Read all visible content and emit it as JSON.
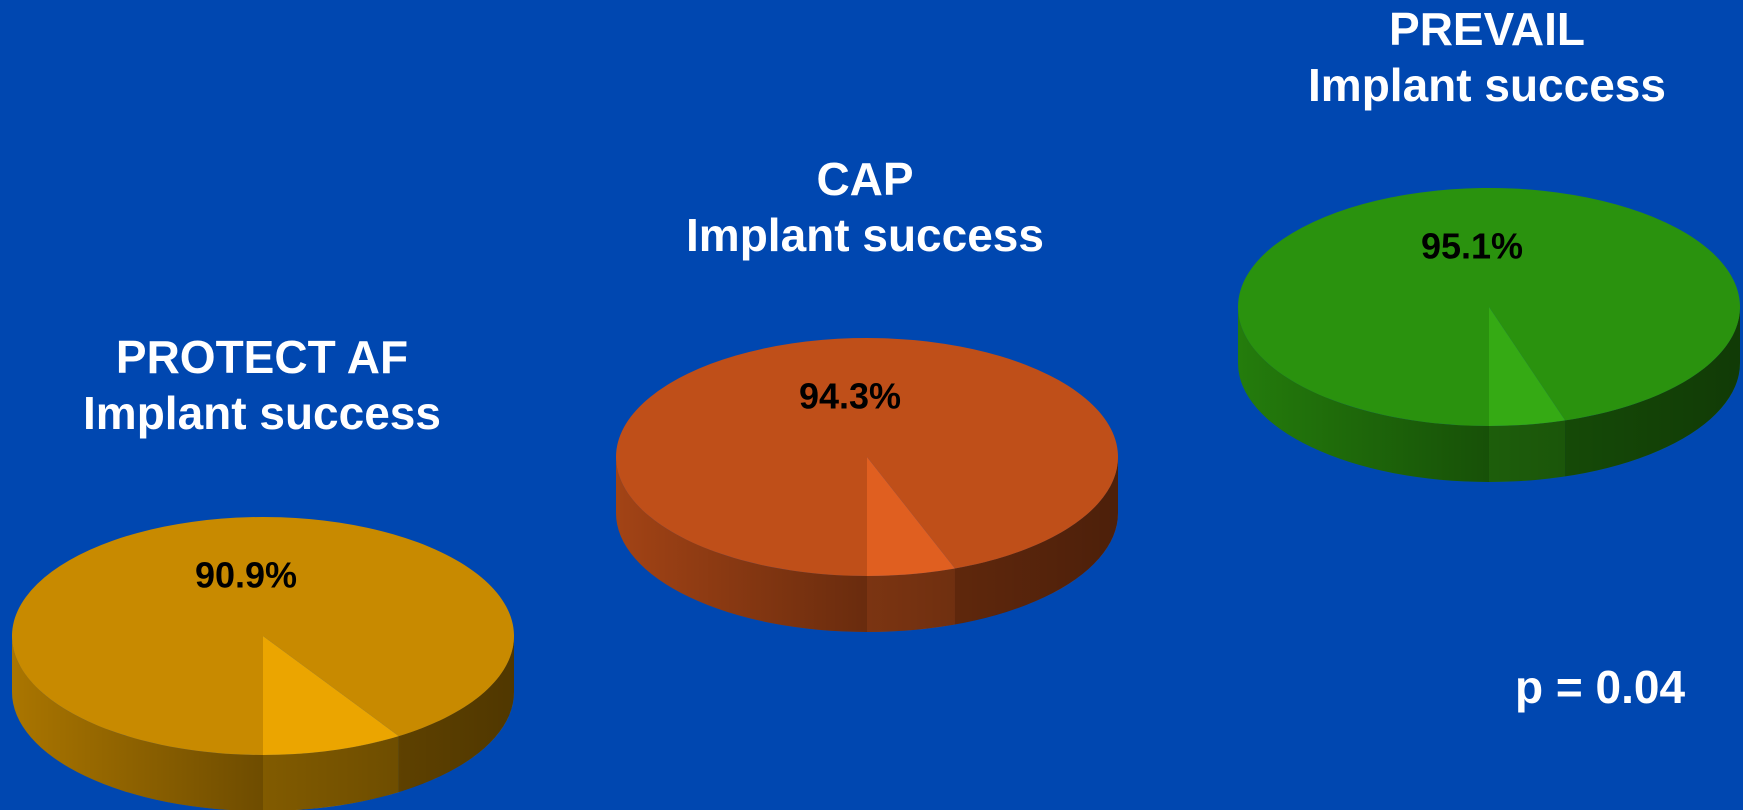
{
  "chart_data": [
    {
      "type": "pie",
      "title": "PROTECT AF",
      "subtitle": "Implant success",
      "values": [
        90.9,
        9.1
      ],
      "value_labels": [
        "90.9%",
        null
      ],
      "colors": [
        "#c88a00",
        "#eba500"
      ]
    },
    {
      "type": "pie",
      "title": "CAP",
      "subtitle": "Implant success",
      "values": [
        94.3,
        5.7
      ],
      "value_labels": [
        "94.3%",
        null
      ],
      "colors": [
        "#bf4f19",
        "#e05f20"
      ]
    },
    {
      "type": "pie",
      "title": "PREVAIL",
      "subtitle": "Implant success",
      "values": [
        95.1,
        4.9
      ],
      "value_labels": [
        "95.1%",
        null
      ],
      "colors": [
        "#2a920e",
        "#35aa14"
      ]
    }
  ],
  "annotation": "p = 0.04"
}
